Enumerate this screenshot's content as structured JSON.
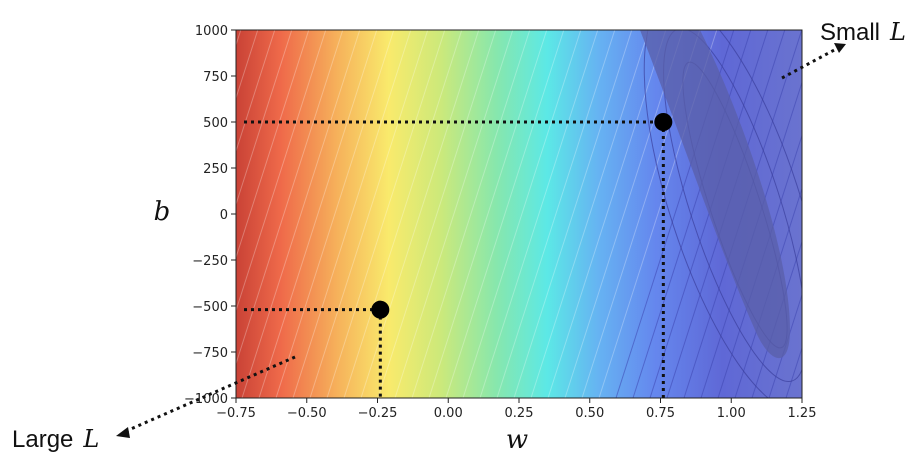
{
  "chart_data": {
    "type": "heatmap",
    "title": "",
    "xlabel": "w",
    "ylabel": "b",
    "xlim": [
      -0.75,
      1.25
    ],
    "ylim": [
      -1000,
      1000
    ],
    "x_ticks": [
      "-0.75",
      "-0.50",
      "-0.25",
      "0.00",
      "0.25",
      "0.50",
      "0.75",
      "1.00",
      "1.25"
    ],
    "y_ticks": [
      "1000",
      "750",
      "500",
      "250",
      "0",
      "-250",
      "-500",
      "-750",
      "-1000"
    ],
    "colormap": "jet",
    "grid": false,
    "loss_minimum": {
      "w": 1.0,
      "b": -100
    },
    "points": [
      {
        "w": 0.76,
        "b": 500
      },
      {
        "w": -0.24,
        "b": -520
      }
    ],
    "annotations": [
      {
        "text": "Small",
        "math": "L"
      },
      {
        "text": "Large",
        "math": "L"
      }
    ]
  }
}
